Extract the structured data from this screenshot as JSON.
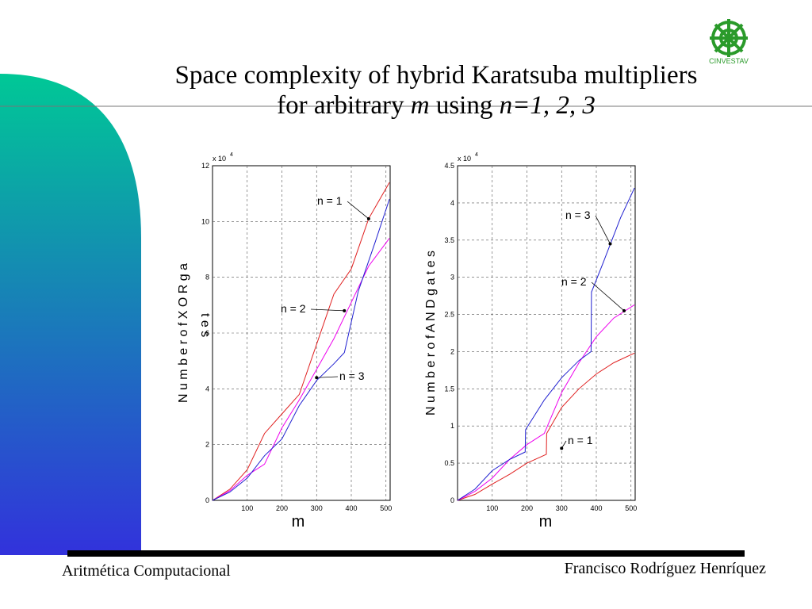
{
  "slide": {
    "title_line1": "Space complexity of hybrid Karatsuba multipliers",
    "title_line2_pre": "for arbitrary ",
    "title_line2_m": "m",
    "title_line2_mid": " using ",
    "title_line2_n": "n=1, 2, 3",
    "footer_left": "Aritmética Computacional",
    "footer_right": "Francisco Rodríguez Henríquez",
    "logo_text": "CINVESTAV",
    "colors": {
      "accent_top": "#00c896",
      "accent_bottom": "#3232dc",
      "rule": "#000000",
      "n1": "#e02020",
      "n2": "#ee00ee",
      "n3": "#2020d0",
      "logo": "#2a9a2a"
    }
  },
  "chart_data": [
    {
      "type": "line",
      "title": "",
      "xlabel": "m",
      "ylabel": "N u m b e r   o f   X O R   g a t e s",
      "ylabel_line1": "N u m b e r   o f   X O R   g a",
      "ylabel_line2": "t e s",
      "exponent_label": "x 10",
      "exponent_power": "4",
      "xlim": [
        0,
        512
      ],
      "ylim": [
        0,
        12
      ],
      "xticks": [
        100,
        200,
        300,
        400,
        500
      ],
      "yticks": [
        0,
        2,
        4,
        6,
        8,
        10,
        12
      ],
      "grid": true,
      "series": [
        {
          "name": "n = 1",
          "x": [
            0,
            50,
            100,
            150,
            200,
            250,
            300,
            350,
            400,
            450,
            510
          ],
          "y": [
            0,
            0.4,
            1.1,
            2.4,
            3.1,
            3.8,
            5.6,
            7.4,
            8.3,
            10.1,
            11.4
          ]
        },
        {
          "name": "n = 2",
          "x": [
            0,
            50,
            100,
            150,
            200,
            250,
            300,
            350,
            400,
            450,
            510
          ],
          "y": [
            0,
            0.35,
            0.9,
            1.3,
            2.6,
            3.6,
            4.7,
            5.8,
            7.1,
            8.4,
            9.4
          ]
        },
        {
          "name": "n = 3",
          "x": [
            0,
            50,
            100,
            150,
            200,
            250,
            300,
            350,
            380,
            420,
            470,
            510
          ],
          "y": [
            0,
            0.3,
            0.8,
            1.6,
            2.2,
            3.4,
            4.3,
            4.9,
            5.3,
            7.5,
            9.3,
            10.8
          ]
        }
      ],
      "annotations": [
        {
          "text": "n = 1",
          "target": [
            450,
            10.1
          ]
        },
        {
          "text": "n = 2",
          "target": [
            380,
            6.8
          ]
        },
        {
          "text": "n = 3",
          "target": [
            300,
            4.4
          ]
        }
      ]
    },
    {
      "type": "line",
      "title": "",
      "xlabel": "m",
      "ylabel": "N u m b e r   o f   A N D   g a t e s",
      "exponent_label": "x 10",
      "exponent_power": "4",
      "xlim": [
        0,
        512
      ],
      "ylim": [
        0,
        4.5
      ],
      "xticks": [
        100,
        200,
        300,
        400,
        500
      ],
      "yticks": [
        0,
        0.5,
        1,
        1.5,
        2,
        2.5,
        3,
        3.5,
        4,
        4.5
      ],
      "grid": true,
      "series": [
        {
          "name": "n = 1",
          "x": [
            0,
            50,
            100,
            150,
            200,
            256,
            257,
            300,
            350,
            400,
            450,
            510
          ],
          "y": [
            0,
            0.08,
            0.22,
            0.35,
            0.5,
            0.62,
            0.9,
            1.25,
            1.5,
            1.7,
            1.85,
            1.98
          ]
        },
        {
          "name": "n = 2",
          "x": [
            0,
            50,
            100,
            150,
            200,
            250,
            300,
            350,
            400,
            450,
            510
          ],
          "y": [
            0,
            0.12,
            0.3,
            0.55,
            0.75,
            0.9,
            1.45,
            1.85,
            2.2,
            2.45,
            2.63
          ]
        },
        {
          "name": "n = 3",
          "x": [
            0,
            50,
            100,
            150,
            195,
            196,
            250,
            300,
            350,
            385,
            386,
            420,
            470,
            510
          ],
          "y": [
            0,
            0.15,
            0.4,
            0.55,
            0.65,
            0.95,
            1.35,
            1.65,
            1.88,
            2.0,
            2.8,
            3.2,
            3.8,
            4.2
          ]
        }
      ],
      "annotations": [
        {
          "text": "n = 3",
          "target": [
            440,
            3.45
          ]
        },
        {
          "text": "n = 2",
          "target": [
            480,
            2.55
          ]
        },
        {
          "text": "n = 1",
          "target": [
            300,
            0.7
          ]
        }
      ]
    }
  ]
}
